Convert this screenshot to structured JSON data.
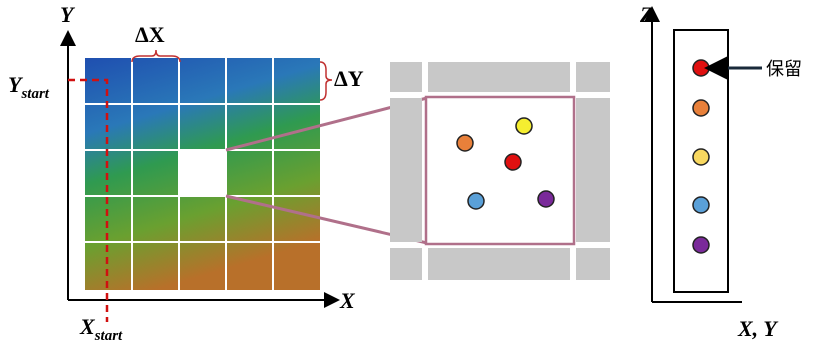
{
  "left_panel": {
    "y_axis_label": "Y",
    "x_axis_label": "X",
    "delta_x": "ΔX",
    "delta_y": "ΔY",
    "y_start": {
      "main": "Y",
      "sub": "start"
    },
    "x_start": {
      "main": "X",
      "sub": "start"
    }
  },
  "right_panel": {
    "z_axis_label": "Z",
    "xy_axis_label": "X, Y",
    "keep_label": "保留"
  }
}
